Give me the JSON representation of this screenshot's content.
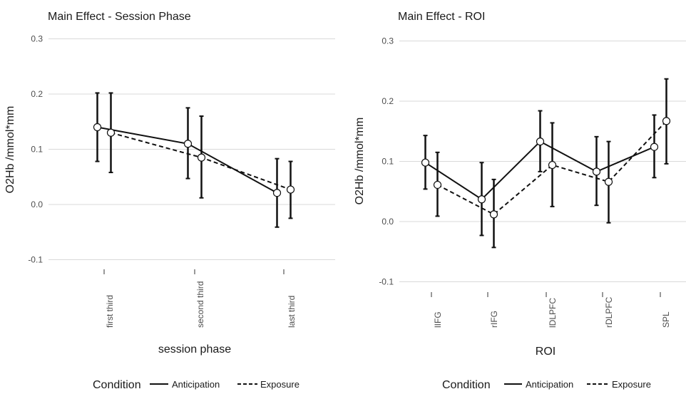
{
  "colors": {
    "line": "#111111",
    "grid": "#d9d9d9",
    "marker_fill": "#ffffff",
    "text": "#1a1a1a",
    "tick_text": "#4d4d4d"
  },
  "chart_data": [
    {
      "type": "line",
      "title": "Main Effect - Session Phase",
      "xlabel": "session phase",
      "ylabel": "O2Hb /mmol*mm",
      "categories": [
        "first third",
        "second third",
        "last third"
      ],
      "yticks": [
        "0.3",
        "0.2",
        "0.1",
        "0.0",
        "-0.1"
      ],
      "ytick_values": [
        0.3,
        0.2,
        0.1,
        0.0,
        -0.1
      ],
      "ylim": [
        -0.14,
        0.3
      ],
      "grid": "horizontal",
      "legend": {
        "title": "Condition",
        "position": "bottom",
        "entries": [
          "Anticipation",
          "Exposure"
        ]
      },
      "series": [
        {
          "name": "Anticipation",
          "linestyle": "solid",
          "values": [
            0.14,
            0.11,
            0.021
          ],
          "lower": [
            0.078,
            0.047,
            -0.041
          ],
          "upper": [
            0.202,
            0.175,
            0.083
          ]
        },
        {
          "name": "Exposure",
          "linestyle": "dashed",
          "values": [
            0.13,
            0.085,
            0.027
          ],
          "lower": [
            0.058,
            0.012,
            -0.025
          ],
          "upper": [
            0.202,
            0.16,
            0.078
          ]
        }
      ]
    },
    {
      "type": "line",
      "title": "Main Effect - ROI",
      "xlabel": "ROI",
      "ylabel": "O2Hb /mmol*mm",
      "categories": [
        "lIFG",
        "rIFG",
        "lDLPFC",
        "rDLPFC",
        "SPL"
      ],
      "yticks": [
        "0.3",
        "0.2",
        "0.1",
        "0.0",
        "-0.1"
      ],
      "ytick_values": [
        0.3,
        0.2,
        0.1,
        0.0,
        -0.1
      ],
      "ylim": [
        -0.1,
        0.3
      ],
      "grid": "horizontal",
      "legend": {
        "title": "Condition",
        "position": "bottom",
        "entries": [
          "Anticipation",
          "Exposure"
        ]
      },
      "series": [
        {
          "name": "Anticipation",
          "linestyle": "solid",
          "values": [
            0.098,
            0.037,
            0.133,
            0.083,
            0.124
          ],
          "lower": [
            0.054,
            -0.023,
            0.083,
            0.027,
            0.073
          ],
          "upper": [
            0.143,
            0.098,
            0.184,
            0.141,
            0.177
          ]
        },
        {
          "name": "Exposure",
          "linestyle": "dashed",
          "values": [
            0.061,
            0.012,
            0.094,
            0.066,
            0.167
          ],
          "lower": [
            0.009,
            -0.043,
            0.025,
            -0.002,
            0.096
          ],
          "upper": [
            0.115,
            0.07,
            0.164,
            0.133,
            0.237
          ]
        }
      ]
    }
  ]
}
